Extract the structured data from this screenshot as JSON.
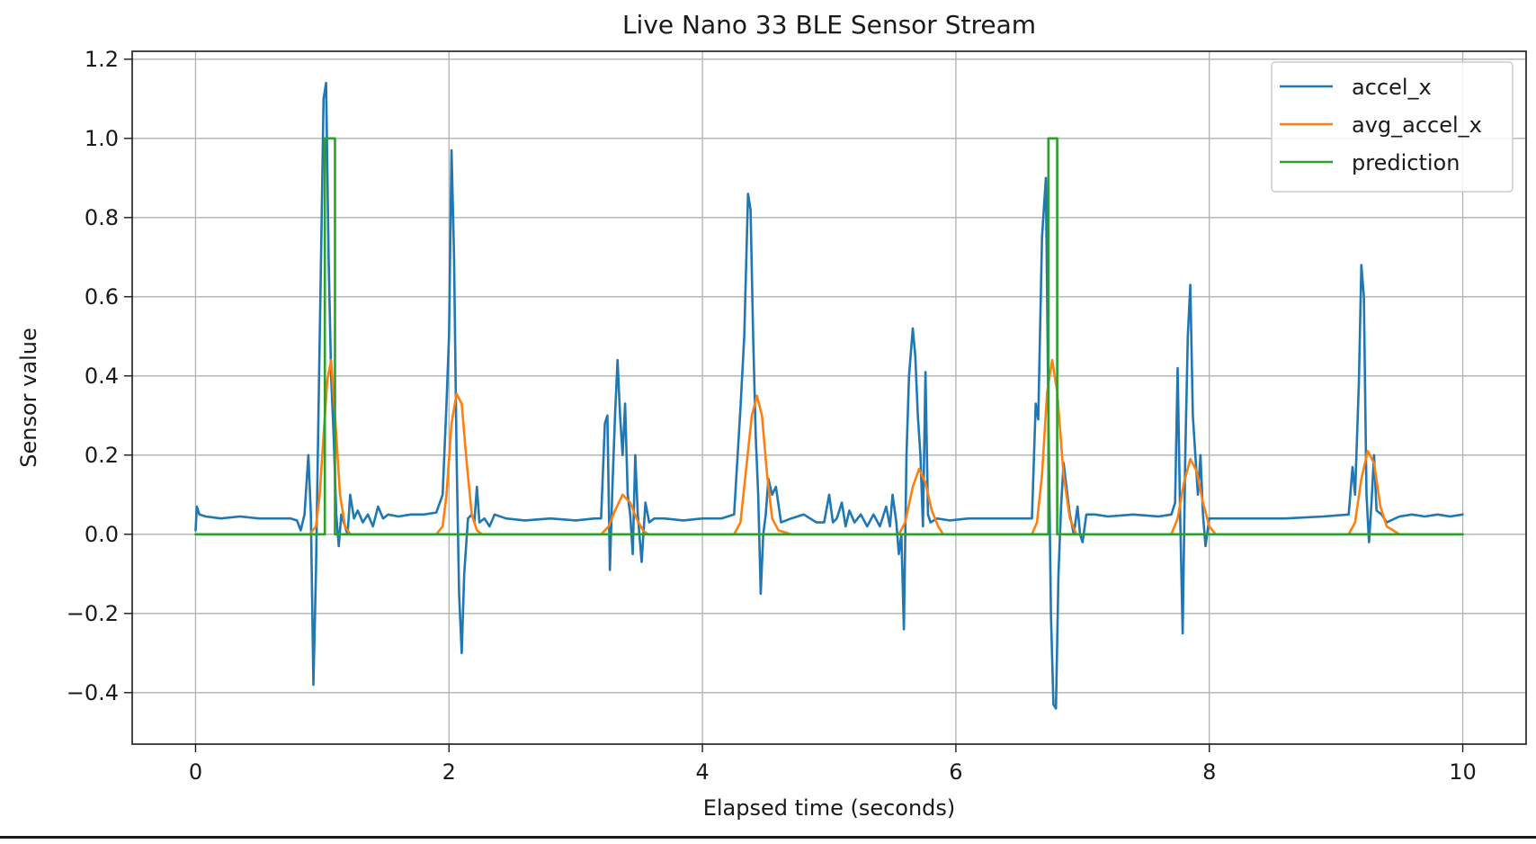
{
  "chart_data": {
    "type": "line",
    "title": "Live Nano 33 BLE Sensor Stream",
    "xlabel": "Elapsed time (seconds)",
    "ylabel": "Sensor value",
    "xlim": [
      -0.5,
      10.5
    ],
    "ylim": [
      -0.53,
      1.22
    ],
    "grid": true,
    "legend_position": "top-right",
    "x_ticks": [
      {
        "value": 0,
        "label": "0"
      },
      {
        "value": 2,
        "label": "2"
      },
      {
        "value": 4,
        "label": "4"
      },
      {
        "value": 6,
        "label": "6"
      },
      {
        "value": 8,
        "label": "8"
      },
      {
        "value": 10,
        "label": "10"
      }
    ],
    "y_ticks": [
      {
        "value": -0.4,
        "label": "−0.4"
      },
      {
        "value": -0.2,
        "label": "−0.2"
      },
      {
        "value": 0.0,
        "label": "0.0"
      },
      {
        "value": 0.2,
        "label": "0.2"
      },
      {
        "value": 0.4,
        "label": "0.4"
      },
      {
        "value": 0.6,
        "label": "0.6"
      },
      {
        "value": 0.8,
        "label": "0.8"
      },
      {
        "value": 1.0,
        "label": "1.0"
      },
      {
        "value": 1.2,
        "label": "1.2"
      }
    ],
    "series": [
      {
        "name": "accel_x",
        "color": "#1f77b4",
        "points": [
          [
            0.0,
            0.01
          ],
          [
            0.01,
            0.07
          ],
          [
            0.03,
            0.05
          ],
          [
            0.08,
            0.045
          ],
          [
            0.2,
            0.04
          ],
          [
            0.35,
            0.045
          ],
          [
            0.5,
            0.04
          ],
          [
            0.65,
            0.04
          ],
          [
            0.75,
            0.04
          ],
          [
            0.8,
            0.035
          ],
          [
            0.83,
            0.01
          ],
          [
            0.86,
            0.05
          ],
          [
            0.89,
            0.2
          ],
          [
            0.91,
            0.05
          ],
          [
            0.93,
            -0.38
          ],
          [
            0.95,
            -0.1
          ],
          [
            0.97,
            0.3
          ],
          [
            0.99,
            0.7
          ],
          [
            1.01,
            1.1
          ],
          [
            1.03,
            1.14
          ],
          [
            1.05,
            0.7
          ],
          [
            1.07,
            0.4
          ],
          [
            1.09,
            0.25
          ],
          [
            1.11,
            0.05
          ],
          [
            1.13,
            -0.03
          ],
          [
            1.15,
            0.05
          ],
          [
            1.18,
            0.02
          ],
          [
            1.2,
            0.0
          ],
          [
            1.22,
            0.1
          ],
          [
            1.25,
            0.04
          ],
          [
            1.28,
            0.06
          ],
          [
            1.32,
            0.03
          ],
          [
            1.36,
            0.05
          ],
          [
            1.4,
            0.02
          ],
          [
            1.44,
            0.07
          ],
          [
            1.48,
            0.04
          ],
          [
            1.52,
            0.05
          ],
          [
            1.6,
            0.045
          ],
          [
            1.7,
            0.05
          ],
          [
            1.8,
            0.05
          ],
          [
            1.9,
            0.055
          ],
          [
            1.95,
            0.1
          ],
          [
            1.98,
            0.33
          ],
          [
            2.0,
            0.5
          ],
          [
            2.02,
            0.97
          ],
          [
            2.04,
            0.7
          ],
          [
            2.06,
            0.2
          ],
          [
            2.08,
            -0.15
          ],
          [
            2.1,
            -0.3
          ],
          [
            2.12,
            -0.1
          ],
          [
            2.15,
            0.04
          ],
          [
            2.18,
            0.05
          ],
          [
            2.2,
            0.03
          ],
          [
            2.22,
            0.12
          ],
          [
            2.24,
            0.03
          ],
          [
            2.28,
            0.04
          ],
          [
            2.32,
            0.02
          ],
          [
            2.36,
            0.05
          ],
          [
            2.45,
            0.04
          ],
          [
            2.6,
            0.035
          ],
          [
            2.8,
            0.04
          ],
          [
            3.0,
            0.035
          ],
          [
            3.15,
            0.04
          ],
          [
            3.2,
            0.04
          ],
          [
            3.23,
            0.28
          ],
          [
            3.25,
            0.3
          ],
          [
            3.27,
            -0.09
          ],
          [
            3.29,
            0.12
          ],
          [
            3.31,
            0.3
          ],
          [
            3.33,
            0.44
          ],
          [
            3.35,
            0.3
          ],
          [
            3.37,
            0.2
          ],
          [
            3.39,
            0.33
          ],
          [
            3.41,
            0.1
          ],
          [
            3.43,
            0.05
          ],
          [
            3.45,
            -0.05
          ],
          [
            3.47,
            0.2
          ],
          [
            3.49,
            0.05
          ],
          [
            3.52,
            -0.07
          ],
          [
            3.55,
            0.08
          ],
          [
            3.58,
            0.03
          ],
          [
            3.62,
            0.04
          ],
          [
            3.7,
            0.04
          ],
          [
            3.85,
            0.035
          ],
          [
            4.0,
            0.04
          ],
          [
            4.15,
            0.04
          ],
          [
            4.25,
            0.05
          ],
          [
            4.3,
            0.32
          ],
          [
            4.33,
            0.5
          ],
          [
            4.36,
            0.86
          ],
          [
            4.38,
            0.82
          ],
          [
            4.4,
            0.5
          ],
          [
            4.42,
            0.25
          ],
          [
            4.44,
            0.1
          ],
          [
            4.46,
            -0.15
          ],
          [
            4.48,
            0.0
          ],
          [
            4.5,
            0.05
          ],
          [
            4.52,
            0.14
          ],
          [
            4.55,
            0.1
          ],
          [
            4.58,
            0.12
          ],
          [
            4.62,
            0.03
          ],
          [
            4.7,
            0.04
          ],
          [
            4.8,
            0.05
          ],
          [
            4.9,
            0.03
          ],
          [
            4.96,
            0.03
          ],
          [
            5.0,
            0.1
          ],
          [
            5.03,
            0.03
          ],
          [
            5.06,
            0.04
          ],
          [
            5.1,
            0.08
          ],
          [
            5.13,
            0.02
          ],
          [
            5.16,
            0.06
          ],
          [
            5.2,
            0.03
          ],
          [
            5.25,
            0.05
          ],
          [
            5.3,
            0.02
          ],
          [
            5.35,
            0.05
          ],
          [
            5.4,
            0.02
          ],
          [
            5.45,
            0.07
          ],
          [
            5.48,
            0.02
          ],
          [
            5.5,
            0.1
          ],
          [
            5.53,
            0.03
          ],
          [
            5.55,
            -0.05
          ],
          [
            5.57,
            0.0
          ],
          [
            5.59,
            -0.24
          ],
          [
            5.61,
            0.2
          ],
          [
            5.63,
            0.4
          ],
          [
            5.66,
            0.52
          ],
          [
            5.68,
            0.45
          ],
          [
            5.7,
            0.3
          ],
          [
            5.72,
            0.2
          ],
          [
            5.74,
            0.02
          ],
          [
            5.76,
            0.41
          ],
          [
            5.78,
            0.05
          ],
          [
            5.8,
            0.03
          ],
          [
            5.85,
            0.04
          ],
          [
            5.95,
            0.035
          ],
          [
            6.1,
            0.04
          ],
          [
            6.3,
            0.04
          ],
          [
            6.5,
            0.04
          ],
          [
            6.6,
            0.04
          ],
          [
            6.63,
            0.33
          ],
          [
            6.65,
            0.29
          ],
          [
            6.68,
            0.75
          ],
          [
            6.71,
            0.9
          ],
          [
            6.73,
            0.3
          ],
          [
            6.75,
            -0.2
          ],
          [
            6.77,
            -0.43
          ],
          [
            6.79,
            -0.44
          ],
          [
            6.81,
            -0.1
          ],
          [
            6.83,
            0.07
          ],
          [
            6.85,
            0.18
          ],
          [
            6.88,
            0.1
          ],
          [
            6.9,
            0.05
          ],
          [
            6.93,
            0.0
          ],
          [
            6.96,
            0.07
          ],
          [
            6.98,
            0.0
          ],
          [
            7.0,
            -0.02
          ],
          [
            7.03,
            0.05
          ],
          [
            7.1,
            0.05
          ],
          [
            7.2,
            0.045
          ],
          [
            7.4,
            0.05
          ],
          [
            7.6,
            0.045
          ],
          [
            7.7,
            0.05
          ],
          [
            7.73,
            0.08
          ],
          [
            7.75,
            0.42
          ],
          [
            7.77,
            0.05
          ],
          [
            7.79,
            -0.25
          ],
          [
            7.81,
            0.2
          ],
          [
            7.83,
            0.5
          ],
          [
            7.85,
            0.63
          ],
          [
            7.87,
            0.3
          ],
          [
            7.89,
            0.2
          ],
          [
            7.91,
            0.1
          ],
          [
            7.93,
            0.2
          ],
          [
            7.95,
            0.05
          ],
          [
            7.97,
            -0.03
          ],
          [
            8.0,
            0.04
          ],
          [
            8.1,
            0.04
          ],
          [
            8.3,
            0.04
          ],
          [
            8.6,
            0.04
          ],
          [
            8.9,
            0.045
          ],
          [
            9.1,
            0.05
          ],
          [
            9.13,
            0.17
          ],
          [
            9.15,
            0.1
          ],
          [
            9.18,
            0.38
          ],
          [
            9.2,
            0.68
          ],
          [
            9.22,
            0.6
          ],
          [
            9.24,
            0.1
          ],
          [
            9.26,
            -0.02
          ],
          [
            9.28,
            0.08
          ],
          [
            9.3,
            0.2
          ],
          [
            9.32,
            0.06
          ],
          [
            9.36,
            0.05
          ],
          [
            9.4,
            0.03
          ],
          [
            9.5,
            0.045
          ],
          [
            9.6,
            0.05
          ],
          [
            9.7,
            0.045
          ],
          [
            9.8,
            0.05
          ],
          [
            9.9,
            0.045
          ],
          [
            10.0,
            0.05
          ]
        ]
      },
      {
        "name": "avg_accel_x",
        "color": "#ff7f0e",
        "points": [
          [
            0.0,
            0.0
          ],
          [
            0.9,
            0.0
          ],
          [
            0.95,
            0.02
          ],
          [
            0.98,
            0.1
          ],
          [
            1.01,
            0.25
          ],
          [
            1.04,
            0.39
          ],
          [
            1.07,
            0.44
          ],
          [
            1.1,
            0.3
          ],
          [
            1.14,
            0.1
          ],
          [
            1.18,
            0.02
          ],
          [
            1.22,
            0.0
          ],
          [
            1.9,
            0.0
          ],
          [
            1.95,
            0.02
          ],
          [
            1.98,
            0.1
          ],
          [
            2.02,
            0.28
          ],
          [
            2.06,
            0.355
          ],
          [
            2.1,
            0.33
          ],
          [
            2.14,
            0.18
          ],
          [
            2.18,
            0.05
          ],
          [
            2.22,
            0.01
          ],
          [
            2.26,
            0.0
          ],
          [
            3.2,
            0.0
          ],
          [
            3.26,
            0.02
          ],
          [
            3.31,
            0.06
          ],
          [
            3.37,
            0.1
          ],
          [
            3.43,
            0.08
          ],
          [
            3.48,
            0.04
          ],
          [
            3.53,
            0.01
          ],
          [
            3.57,
            0.0
          ],
          [
            4.25,
            0.0
          ],
          [
            4.3,
            0.03
          ],
          [
            4.34,
            0.15
          ],
          [
            4.39,
            0.3
          ],
          [
            4.43,
            0.35
          ],
          [
            4.47,
            0.3
          ],
          [
            4.51,
            0.15
          ],
          [
            4.55,
            0.04
          ],
          [
            4.6,
            0.01
          ],
          [
            4.7,
            0.0
          ],
          [
            5.55,
            0.0
          ],
          [
            5.6,
            0.03
          ],
          [
            5.66,
            0.12
          ],
          [
            5.71,
            0.165
          ],
          [
            5.76,
            0.13
          ],
          [
            5.81,
            0.06
          ],
          [
            5.86,
            0.02
          ],
          [
            5.9,
            0.0
          ],
          [
            6.6,
            0.0
          ],
          [
            6.64,
            0.03
          ],
          [
            6.68,
            0.15
          ],
          [
            6.72,
            0.36
          ],
          [
            6.76,
            0.44
          ],
          [
            6.8,
            0.36
          ],
          [
            6.85,
            0.15
          ],
          [
            6.9,
            0.04
          ],
          [
            6.95,
            0.0
          ],
          [
            7.7,
            0.0
          ],
          [
            7.75,
            0.04
          ],
          [
            7.8,
            0.13
          ],
          [
            7.85,
            0.19
          ],
          [
            7.9,
            0.16
          ],
          [
            7.95,
            0.08
          ],
          [
            8.0,
            0.02
          ],
          [
            8.05,
            0.0
          ],
          [
            9.1,
            0.0
          ],
          [
            9.15,
            0.03
          ],
          [
            9.2,
            0.14
          ],
          [
            9.25,
            0.21
          ],
          [
            9.3,
            0.18
          ],
          [
            9.35,
            0.07
          ],
          [
            9.4,
            0.02
          ],
          [
            9.45,
            0.01
          ],
          [
            9.5,
            0.0
          ],
          [
            10.0,
            0.0
          ]
        ]
      },
      {
        "name": "prediction",
        "color": "#2ca02c",
        "points": [
          [
            0.0,
            0.0
          ],
          [
            1.02,
            0.0
          ],
          [
            1.02,
            1.0
          ],
          [
            1.1,
            1.0
          ],
          [
            1.1,
            0.0
          ],
          [
            6.73,
            0.0
          ],
          [
            6.73,
            1.0
          ],
          [
            6.8,
            1.0
          ],
          [
            6.8,
            0.0
          ],
          [
            10.0,
            0.0
          ]
        ]
      }
    ]
  }
}
